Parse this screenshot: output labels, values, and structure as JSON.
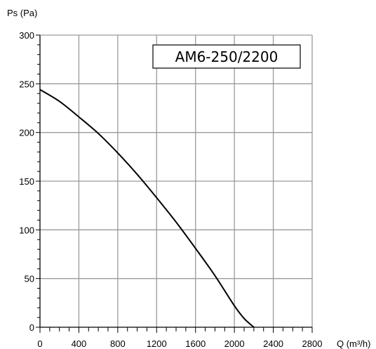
{
  "colors": {
    "grid": "#9a9a9a",
    "axis": "#000000",
    "curve": "#000000",
    "background": "#ffffff",
    "label_box_border": "#000000"
  },
  "chart_data": {
    "type": "line",
    "title": "AM6-250/2200",
    "xlabel": "Q (m³/h)",
    "ylabel": "Ps (Pa)",
    "xlim": [
      0,
      2800
    ],
    "ylim": [
      0,
      300
    ],
    "xticks": [
      0,
      400,
      800,
      1200,
      1600,
      2000,
      2400,
      2800
    ],
    "yticks": [
      0,
      50,
      100,
      150,
      200,
      250,
      300
    ],
    "grid": true,
    "series": [
      {
        "x": [
          0,
          200,
          400,
          600,
          800,
          1000,
          1200,
          1400,
          1600,
          1800,
          2000,
          2100,
          2200
        ],
        "y": [
          244,
          232,
          216,
          199,
          179,
          157,
          133,
          108,
          81,
          53,
          22,
          9,
          0
        ]
      }
    ]
  }
}
